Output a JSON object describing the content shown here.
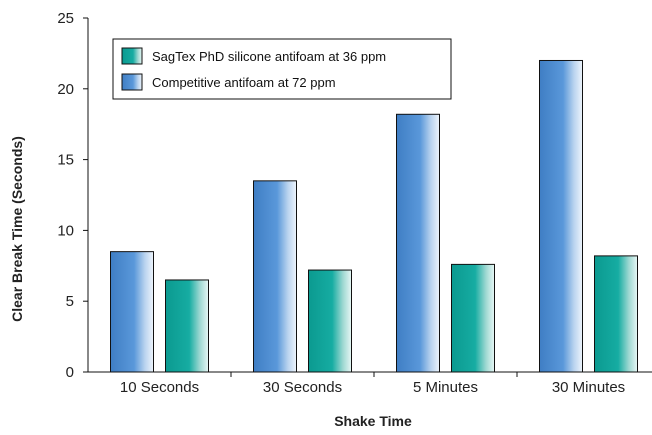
{
  "chart_data": {
    "type": "bar",
    "title": "",
    "xlabel": "Shake Time",
    "ylabel": "Clear Break Time (Seconds)",
    "ylim": [
      0,
      25
    ],
    "yticks": [
      "0",
      "5",
      "10",
      "15",
      "20",
      "25"
    ],
    "grid": false,
    "legend_position": "top-left",
    "categories": [
      "10 Seconds",
      "30 Seconds",
      "5 Minutes",
      "30 Minutes"
    ],
    "series": [
      {
        "name": "Competitive antifoam at 72 ppm",
        "color": "#4f8fd2",
        "values": [
          8.5,
          13.5,
          18.2,
          22.0
        ]
      },
      {
        "name": "SagTex PhD silicone antifoam at 36 ppm",
        "color": "#11aaa0",
        "values": [
          6.5,
          7.2,
          7.6,
          8.2
        ]
      }
    ],
    "legend_order": [
      1,
      0
    ]
  }
}
